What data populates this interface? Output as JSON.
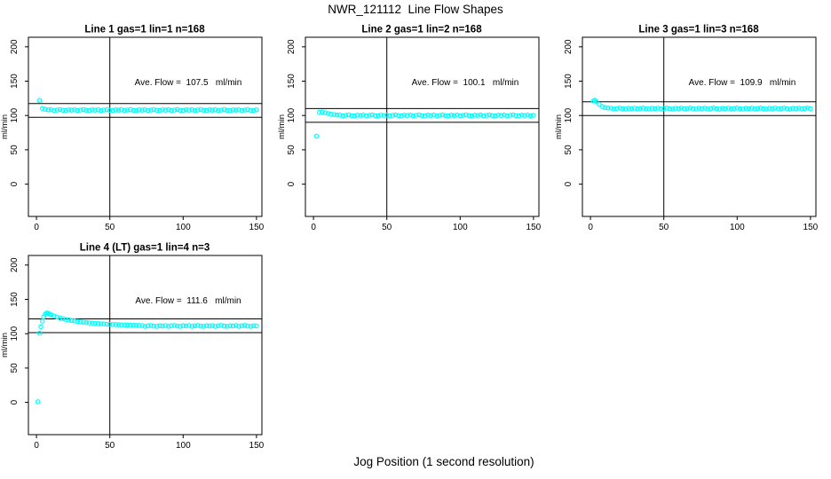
{
  "page": {
    "title": "NWR_121112  Line Flow Shapes",
    "xlabel": "Jog Position (1 second resolution)"
  },
  "style": {
    "point_color": "#00FFFF",
    "line_color": "#000000",
    "background": "#FFFFFF"
  },
  "axes": {
    "x_ticks": [
      0,
      50,
      100,
      150
    ],
    "y_ticks": [
      0,
      50,
      100,
      150,
      200
    ],
    "ylabel": "ml/min",
    "xlim": [
      -5.5,
      153.7
    ],
    "ylim": [
      -47,
      214
    ]
  },
  "chart_data": [
    {
      "type": "scatter",
      "title": "Line 1 gas=1 lin=1 n=168",
      "annotation": "Ave. Flow =  107.5   ml/min",
      "ave_flow_ml_min": 107.5,
      "hlines": [
        117.5,
        97.5
      ],
      "vline": 50,
      "points": [
        [
          2,
          122
        ],
        [
          4,
          110.4
        ],
        [
          6,
          108.9
        ],
        [
          8,
          108.3
        ]
      ],
      "tail": {
        "x_start": 10,
        "x_step": 2,
        "y": [
          108.5,
          107.4,
          108.1,
          108.7,
          107.7,
          107.3,
          108.3,
          107.9,
          108.5,
          107.4,
          108.1,
          108.7,
          107.7,
          107.3,
          108.3,
          107.9,
          108.5,
          107.4,
          108.1,
          108.7,
          107.7,
          107.3,
          108.3,
          107.9,
          108.5,
          107.4,
          108.1,
          108.7,
          107.7,
          107.3,
          108.3,
          107.9,
          108.5,
          107.4,
          108.1,
          108.7,
          107.7,
          107.3,
          108.3,
          107.9,
          108.5,
          107.4,
          108.1,
          108.7,
          107.7,
          107.3,
          108.3,
          107.9,
          108.5,
          107.4,
          108.1,
          108.7,
          107.7,
          107.3,
          108.3,
          107.9,
          108.5,
          107.4,
          108.1,
          108.7,
          107.7,
          107.3,
          108.3,
          107.9,
          108.5,
          107.4,
          108.1,
          108.7,
          107.7,
          107.3,
          108.3
        ]
      }
    },
    {
      "type": "scatter",
      "title": "Line 2 gas=1 lin=2 n=168",
      "annotation": "Ave. Flow =  100.1   ml/min",
      "ave_flow_ml_min": 100.1,
      "hlines": [
        110.1,
        90.1
      ],
      "vline": 50,
      "points": [
        [
          2,
          70
        ],
        [
          4,
          104.6
        ],
        [
          6,
          105.2
        ],
        [
          8,
          104.1
        ],
        [
          10,
          103.0
        ],
        [
          12,
          102.0
        ],
        [
          14,
          101.3
        ],
        [
          16,
          100.7
        ]
      ],
      "tail": {
        "x_start": 18,
        "x_step": 2,
        "y": [
          100.7,
          99.6,
          100.3,
          100.9,
          99.9,
          99.5,
          100.5,
          100.1,
          100.7,
          99.6,
          100.3,
          100.9,
          99.9,
          99.5,
          100.5,
          100.1,
          100.7,
          99.6,
          100.3,
          100.9,
          99.9,
          99.5,
          100.5,
          100.1,
          100.7,
          99.6,
          100.3,
          100.9,
          99.9,
          99.5,
          100.5,
          100.1,
          100.7,
          99.6,
          100.3,
          100.9,
          99.9,
          99.5,
          100.5,
          100.1,
          100.7,
          99.6,
          100.3,
          100.9,
          99.9,
          99.5,
          100.5,
          100.1,
          100.7,
          99.6,
          100.3,
          100.9,
          99.9,
          99.5,
          100.5,
          100.1,
          100.7,
          99.6,
          100.3,
          100.9,
          99.9,
          99.5,
          100.5,
          100.1,
          100.7,
          99.6,
          100.3
        ]
      }
    },
    {
      "type": "scatter",
      "title": "Line 3 gas=1 lin=3 n=168",
      "annotation": "Ave. Flow =  109.9   ml/min",
      "ave_flow_ml_min": 109.9,
      "hlines": [
        119.9,
        99.9
      ],
      "vline": 50,
      "points": [
        [
          2,
          121.2
        ],
        [
          3,
          122.1
        ],
        [
          4,
          120.6
        ],
        [
          6,
          116.2
        ],
        [
          8,
          113.1
        ],
        [
          10,
          111.6
        ],
        [
          12,
          110.9
        ]
      ],
      "tail": {
        "x_start": 14,
        "x_step": 2,
        "y": [
          110.7,
          109.6,
          110.3,
          110.9,
          109.9,
          109.5,
          110.5,
          110.1,
          110.7,
          109.6,
          110.3,
          110.9,
          109.9,
          109.5,
          110.5,
          110.1,
          110.7,
          109.6,
          110.3,
          110.9,
          109.9,
          109.5,
          110.5,
          110.1,
          110.7,
          109.6,
          110.3,
          110.9,
          109.9,
          109.5,
          110.5,
          110.1,
          110.7,
          109.6,
          110.3,
          110.9,
          109.9,
          109.5,
          110.5,
          110.1,
          110.7,
          109.6,
          110.3,
          110.9,
          109.9,
          109.5,
          110.5,
          110.1,
          110.7,
          109.6,
          110.3,
          110.9,
          109.9,
          109.5,
          110.5,
          110.1,
          110.7,
          109.6,
          110.3,
          110.9,
          109.9,
          109.5,
          110.5,
          110.1,
          110.7,
          109.6,
          110.3,
          110.9,
          109.9
        ]
      }
    },
    {
      "type": "scatter",
      "title": "Line 4 (LT) gas=1 lin=4 n=3",
      "annotation": "Ave. Flow =  111.6   ml/min",
      "ave_flow_ml_min": 111.6,
      "hlines": [
        121.6,
        101.6
      ],
      "vline": 50,
      "points": [
        [
          1,
          1
        ],
        [
          2,
          101
        ],
        [
          3,
          110.2
        ],
        [
          4,
          118.4
        ],
        [
          5,
          124.6
        ],
        [
          6,
          128.6
        ],
        [
          7,
          130.1
        ],
        [
          8,
          129.6
        ],
        [
          9,
          128.6
        ],
        [
          10,
          127.6
        ],
        [
          12,
          125.8
        ],
        [
          14,
          124.3
        ],
        [
          16,
          123.0
        ],
        [
          18,
          121.9
        ],
        [
          20,
          120.9
        ],
        [
          22,
          120.1
        ],
        [
          24,
          119.3
        ],
        [
          26,
          118.6
        ],
        [
          28,
          117.9
        ],
        [
          30,
          117.3
        ],
        [
          32,
          116.8
        ],
        [
          34,
          116.3
        ],
        [
          36,
          115.9
        ],
        [
          38,
          115.5
        ],
        [
          40,
          115.1
        ],
        [
          42,
          114.8
        ],
        [
          44,
          114.5
        ],
        [
          46,
          114.2
        ],
        [
          48,
          113.9
        ],
        [
          50,
          113.7
        ],
        [
          52,
          113.5
        ],
        [
          54,
          113.3
        ],
        [
          56,
          113.1
        ],
        [
          58,
          112.9
        ],
        [
          60,
          112.8
        ],
        [
          62,
          112.6
        ],
        [
          64,
          112.5
        ],
        [
          66,
          112.3
        ],
        [
          68,
          112.2
        ],
        [
          70,
          112.1
        ]
      ],
      "tail": {
        "x_start": 72,
        "x_step": 2,
        "y": [
          111.9,
          110.8,
          111.5,
          112.1,
          111.1,
          110.7,
          111.7,
          111.3,
          111.9,
          110.8,
          111.5,
          112.1,
          111.1,
          110.7,
          111.7,
          111.3,
          111.9,
          110.8,
          111.5,
          112.1,
          111.1,
          110.7,
          111.7,
          111.3,
          111.9,
          110.8,
          111.5,
          112.1,
          111.1,
          110.7,
          111.7,
          111.3,
          111.9,
          110.8,
          111.5,
          112.1,
          111.1,
          110.7,
          111.7,
          111.3
        ]
      }
    }
  ]
}
